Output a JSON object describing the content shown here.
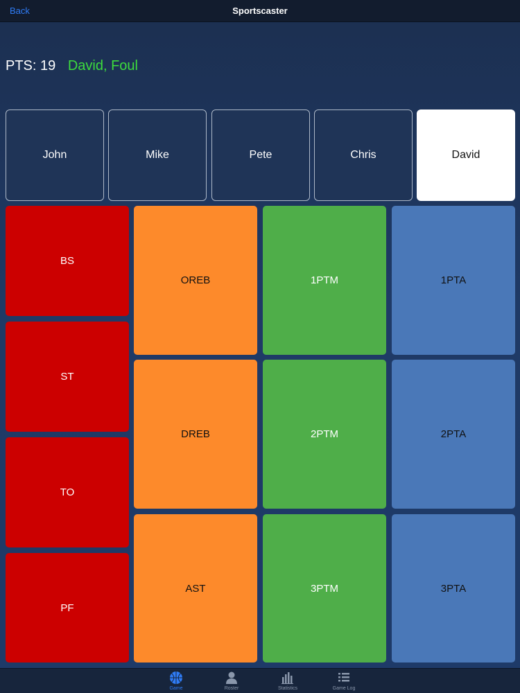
{
  "nav": {
    "back_label": "Back",
    "title": "Sportscaster"
  },
  "status": {
    "points": "PTS: 19",
    "last_event": "David, Foul"
  },
  "players": [
    {
      "name": "John",
      "selected": false
    },
    {
      "name": "Mike",
      "selected": false
    },
    {
      "name": "Pete",
      "selected": false
    },
    {
      "name": "Chris",
      "selected": false
    },
    {
      "name": "David",
      "selected": true
    }
  ],
  "actions": {
    "red": [
      "BS",
      "ST",
      "TO",
      "PF"
    ],
    "orange": [
      "OREB",
      "DREB",
      "AST"
    ],
    "green": [
      "1PTM",
      "2PTM",
      "3PTM"
    ],
    "blue": [
      "1PTA",
      "2PTA",
      "3PTA"
    ]
  },
  "tabs": [
    {
      "label": "Game",
      "icon": "basketball-icon",
      "active": true
    },
    {
      "label": "Roster",
      "icon": "person-icon",
      "active": false
    },
    {
      "label": "Statistics",
      "icon": "bar-chart-icon",
      "active": false
    },
    {
      "label": "Game Log",
      "icon": "list-icon",
      "active": false
    }
  ],
  "colors": {
    "background": "#1f3a66",
    "nav_back": "#2f7cf6",
    "event_text": "#3ddc3d",
    "red": "#cc0000",
    "orange": "#fd8a2b",
    "green": "#4fae49",
    "blue": "#4a78b8"
  }
}
